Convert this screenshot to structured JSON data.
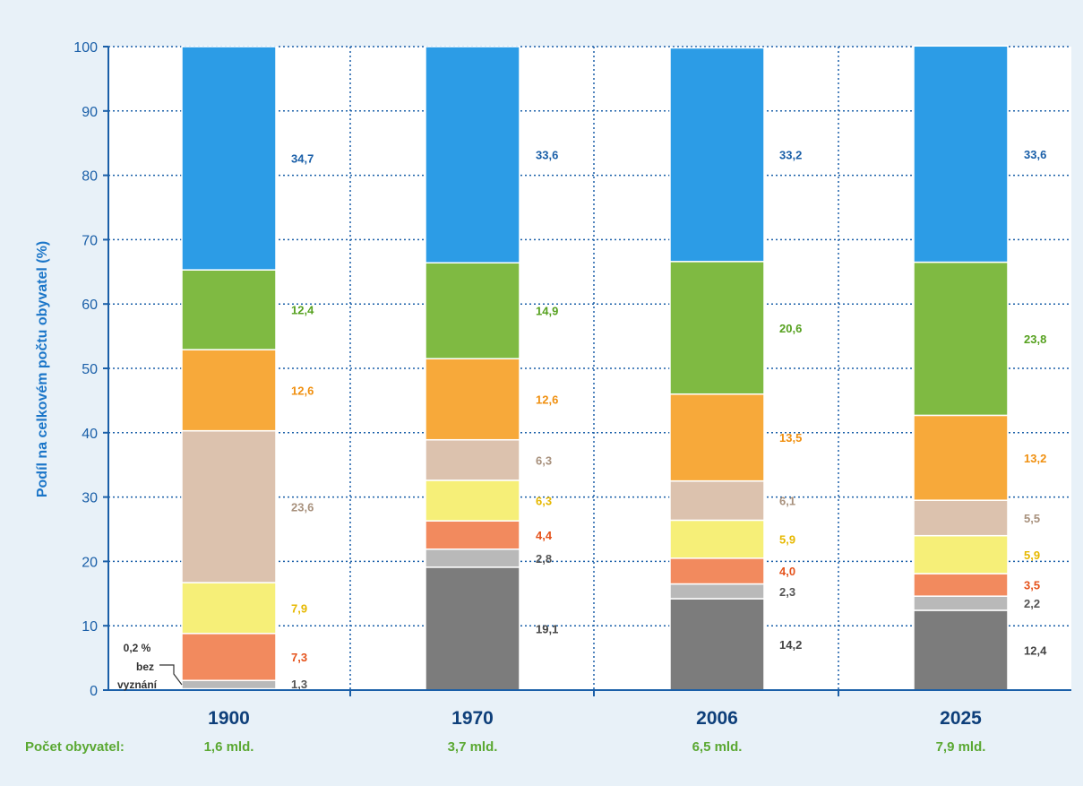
{
  "colors": {
    "background": "#e8f1f8",
    "plot_bg": "#ffffff",
    "axis": "#1a5fa8",
    "grid": "#1a5fa8"
  },
  "chart_data": {
    "type": "bar",
    "stacked": true,
    "title": "",
    "xlabel": "",
    "ylabel": "Podíl na celkovém počtu obyvatel (%)",
    "ylim": [
      0,
      100
    ],
    "yticks": [
      0,
      10,
      20,
      30,
      40,
      50,
      60,
      70,
      80,
      90,
      100
    ],
    "grid": true,
    "categories": [
      "1900",
      "1970",
      "2006",
      "2025"
    ],
    "population_label": "Počet obyvatel:",
    "population": [
      "1,6 mld.",
      "3,7 mld.",
      "6,5 mld.",
      "7,9 mld."
    ],
    "series": [
      {
        "color": "#7c7c7c",
        "label_color": "#444444",
        "values": [
          0.2,
          19.1,
          14.2,
          12.4
        ],
        "labels": [
          "",
          "19,1",
          "14,2",
          "12,4"
        ]
      },
      {
        "color": "#b9b9b9",
        "label_color": "#555555",
        "values": [
          1.3,
          2.8,
          2.3,
          2.2
        ],
        "labels": [
          "1,3",
          "2,8",
          "2,3",
          "2,2"
        ]
      },
      {
        "color": "#f28a5e",
        "label_color": "#e5531c",
        "values": [
          7.3,
          4.4,
          4.0,
          3.5
        ],
        "labels": [
          "7,3",
          "4,4",
          "4,0",
          "3,5"
        ]
      },
      {
        "color": "#f6ef78",
        "label_color": "#e6b800",
        "values": [
          7.9,
          6.3,
          5.9,
          5.9
        ],
        "labels": [
          "7,9",
          "6,3",
          "5,9",
          "5,9"
        ]
      },
      {
        "color": "#dcc2ae",
        "label_color": "#a8917d",
        "values": [
          23.6,
          6.3,
          6.1,
          5.5
        ],
        "labels": [
          "23,6",
          "6,3",
          "6,1",
          "5,5"
        ]
      },
      {
        "color": "#f7a93a",
        "label_color": "#f09010",
        "values": [
          12.6,
          12.6,
          13.5,
          13.2
        ],
        "labels": [
          "12,6",
          "12,6",
          "13,5",
          "13,2"
        ]
      },
      {
        "color": "#7fba42",
        "label_color": "#56a11f",
        "values": [
          12.4,
          14.9,
          20.6,
          23.8
        ],
        "labels": [
          "12,4",
          "14,9",
          "20,6",
          "23,8"
        ]
      },
      {
        "color": "#2c9ce6",
        "label_color": "#1a5fa8",
        "values": [
          34.7,
          33.6,
          33.2,
          33.6
        ],
        "labels": [
          "34,7",
          "33,6",
          "33,2",
          "33,6"
        ]
      }
    ],
    "annotation": {
      "lines": [
        "0,2 %",
        "bez",
        "vyznání"
      ]
    }
  }
}
